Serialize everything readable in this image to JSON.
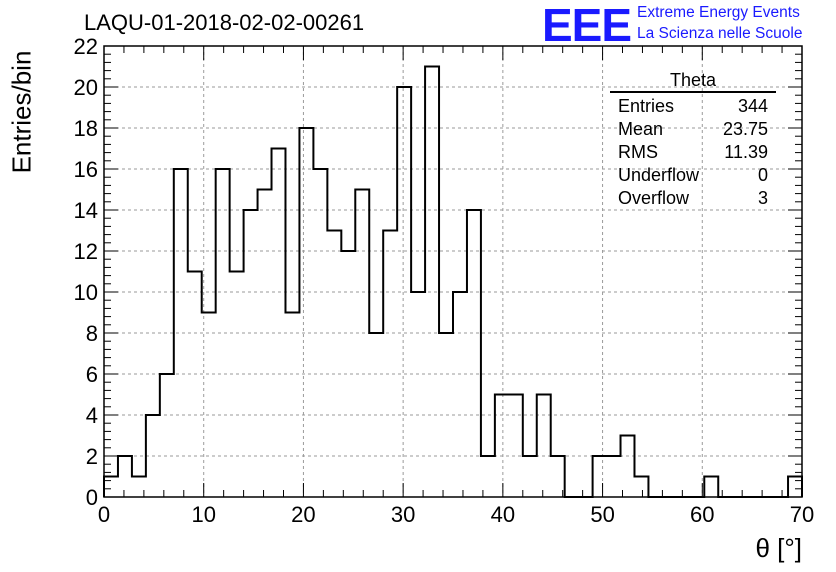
{
  "header": {
    "title": "LAQU-01-2018-02-02-00261",
    "logo_mark": "EEE",
    "logo_line1": "Extreme Energy Events",
    "logo_line2": "La Scienza nelle Scuole"
  },
  "stats_box": {
    "title": "Theta",
    "rows": [
      {
        "label": "Entries",
        "value": "344"
      },
      {
        "label": "Mean",
        "value": "23.75"
      },
      {
        "label": "RMS",
        "value": "11.39"
      },
      {
        "label": "Underflow",
        "value": "0"
      },
      {
        "label": "Overflow",
        "value": "3"
      }
    ]
  },
  "chart_data": {
    "type": "bar",
    "style": "step-histogram",
    "xlabel": "θ [°]",
    "ylabel": "Entries/bin",
    "xlim": [
      0,
      70
    ],
    "ylim": [
      0,
      22
    ],
    "grid": true,
    "bin_width": 1.4,
    "bin_low_edges": [
      0.0,
      1.4,
      2.8,
      4.2,
      5.6,
      7.0,
      8.4,
      9.8,
      11.2,
      12.6,
      14.0,
      15.4,
      16.8,
      18.2,
      19.6,
      21.0,
      22.4,
      23.8,
      25.2,
      26.6,
      28.0,
      29.4,
      30.8,
      32.2,
      33.6,
      35.0,
      36.4,
      37.8,
      39.2,
      40.6,
      42.0,
      43.4,
      44.8,
      46.2,
      47.6,
      49.0,
      50.4,
      51.8,
      53.2,
      54.6,
      56.0,
      57.4,
      58.8,
      60.2,
      61.6,
      63.0,
      64.4,
      65.8,
      67.2,
      68.6
    ],
    "values": [
      1,
      2,
      1,
      4,
      6,
      16,
      11,
      9,
      16,
      11,
      14,
      15,
      17,
      9,
      18,
      16,
      13,
      12,
      15,
      8,
      13,
      20,
      10,
      21,
      8,
      10,
      14,
      2,
      5,
      5,
      2,
      5,
      2,
      0,
      0,
      2,
      2,
      3,
      1,
      0,
      0,
      0,
      0,
      1,
      0,
      0,
      0,
      0,
      0,
      1
    ],
    "x_ticks": [
      "0",
      "10",
      "20",
      "30",
      "40",
      "50",
      "60",
      "70"
    ],
    "y_ticks": [
      "0",
      "2",
      "4",
      "6",
      "8",
      "10",
      "12",
      "14",
      "16",
      "18",
      "20",
      "22"
    ]
  }
}
